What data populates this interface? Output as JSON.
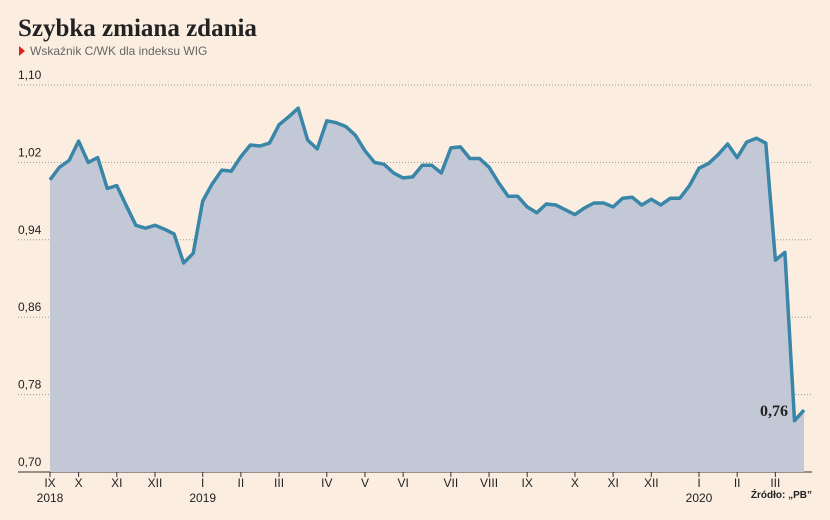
{
  "chart_data": {
    "type": "area",
    "title": "Szybka zmiana zdania",
    "subtitle": "Wskaźnik C/WK dla indeksu WIG",
    "source": "Źródło: „PB”",
    "x": [
      0,
      1,
      2,
      3,
      4,
      5,
      6,
      7,
      8,
      9,
      10,
      11,
      12,
      13,
      14,
      15,
      16,
      17,
      18,
      19,
      20,
      21,
      22,
      23,
      24,
      25,
      26,
      27,
      28,
      29,
      30,
      31,
      32,
      33,
      34,
      35,
      36,
      37,
      38,
      39,
      40,
      41,
      42,
      43,
      44,
      45,
      46,
      47,
      48,
      49,
      50,
      51,
      52,
      53,
      54,
      55,
      56,
      57,
      58,
      59,
      60,
      61,
      62,
      63,
      64,
      65,
      66,
      67,
      68,
      69,
      70,
      71,
      72,
      73,
      74,
      75,
      76,
      77,
      78,
      79
    ],
    "series": [
      {
        "name": "C/WK",
        "color": "#3a86a8",
        "fill": "#c3c8d6",
        "values": [
          1.002,
          1.015,
          1.022,
          1.042,
          1.02,
          1.025,
          0.993,
          0.996,
          0.975,
          0.955,
          0.952,
          0.955,
          0.951,
          0.946,
          0.916,
          0.926,
          0.98,
          0.998,
          1.012,
          1.011,
          1.026,
          1.038,
          1.037,
          1.04,
          1.059,
          1.067,
          1.076,
          1.043,
          1.034,
          1.063,
          1.061,
          1.057,
          1.048,
          1.032,
          1.02,
          1.018,
          1.009,
          1.004,
          1.005,
          1.017,
          1.017,
          1.009,
          1.035,
          1.036,
          1.024,
          1.024,
          1.015,
          0.999,
          0.985,
          0.985,
          0.974,
          0.968,
          0.977,
          0.976,
          0.971,
          0.966,
          0.973,
          0.978,
          0.978,
          0.974,
          0.983,
          0.984,
          0.976,
          0.982,
          0.976,
          0.983,
          0.983,
          0.996,
          1.014,
          1.019,
          1.028,
          1.039,
          1.025,
          1.041,
          1.045,
          1.04,
          0.919,
          0.927,
          0.753,
          0.764
        ],
        "value_labels": [
          null,
          null,
          null,
          null,
          null,
          null,
          null,
          null,
          null,
          null,
          null,
          null,
          null,
          null,
          null,
          null,
          null,
          null,
          null,
          null,
          null,
          null,
          null,
          null,
          null,
          null,
          null,
          null,
          null,
          null,
          null,
          null,
          null,
          null,
          null,
          null,
          null,
          null,
          null,
          null,
          null,
          null,
          null,
          null,
          null,
          null,
          null,
          null,
          null,
          null,
          null,
          null,
          null,
          null,
          null,
          null,
          null,
          null,
          null,
          null,
          null,
          null,
          null,
          null,
          null,
          null,
          null,
          null,
          null,
          null,
          null,
          null,
          null,
          null,
          null,
          null,
          null,
          null,
          null,
          "0,76"
        ]
      }
    ],
    "xlim": [
      0,
      79
    ],
    "xticks": [
      {
        "value": 0,
        "label": "IX"
      },
      {
        "value": 3,
        "label": "X"
      },
      {
        "value": 7,
        "label": "XI"
      },
      {
        "value": 11,
        "label": "XII"
      },
      {
        "value": 16,
        "label": "I"
      },
      {
        "value": 20,
        "label": "II"
      },
      {
        "value": 24,
        "label": "III"
      },
      {
        "value": 29,
        "label": "IV"
      },
      {
        "value": 33,
        "label": "V"
      },
      {
        "value": 37,
        "label": "VI"
      },
      {
        "value": 42,
        "label": "VII"
      },
      {
        "value": 46,
        "label": "VIII"
      },
      {
        "value": 50,
        "label": "IX"
      },
      {
        "value": 55,
        "label": "X"
      },
      {
        "value": 59,
        "label": "XI"
      },
      {
        "value": 63,
        "label": "XII"
      },
      {
        "value": 68,
        "label": "I"
      },
      {
        "value": 72,
        "label": "II"
      },
      {
        "value": 76,
        "label": "III"
      }
    ],
    "year_labels": [
      {
        "value": 0,
        "label": "2018"
      },
      {
        "value": 16,
        "label": "2019"
      },
      {
        "value": 68,
        "label": "2020"
      }
    ],
    "ylim": [
      0.7,
      1.1
    ],
    "yticks": [
      {
        "value": 0.7,
        "label": "0,70"
      },
      {
        "value": 0.78,
        "label": "0,78"
      },
      {
        "value": 0.86,
        "label": "0,86"
      },
      {
        "value": 0.94,
        "label": "0,94"
      },
      {
        "value": 1.02,
        "label": "1,02"
      },
      {
        "value": 1.1,
        "label": "1,10"
      }
    ],
    "grid": true
  }
}
